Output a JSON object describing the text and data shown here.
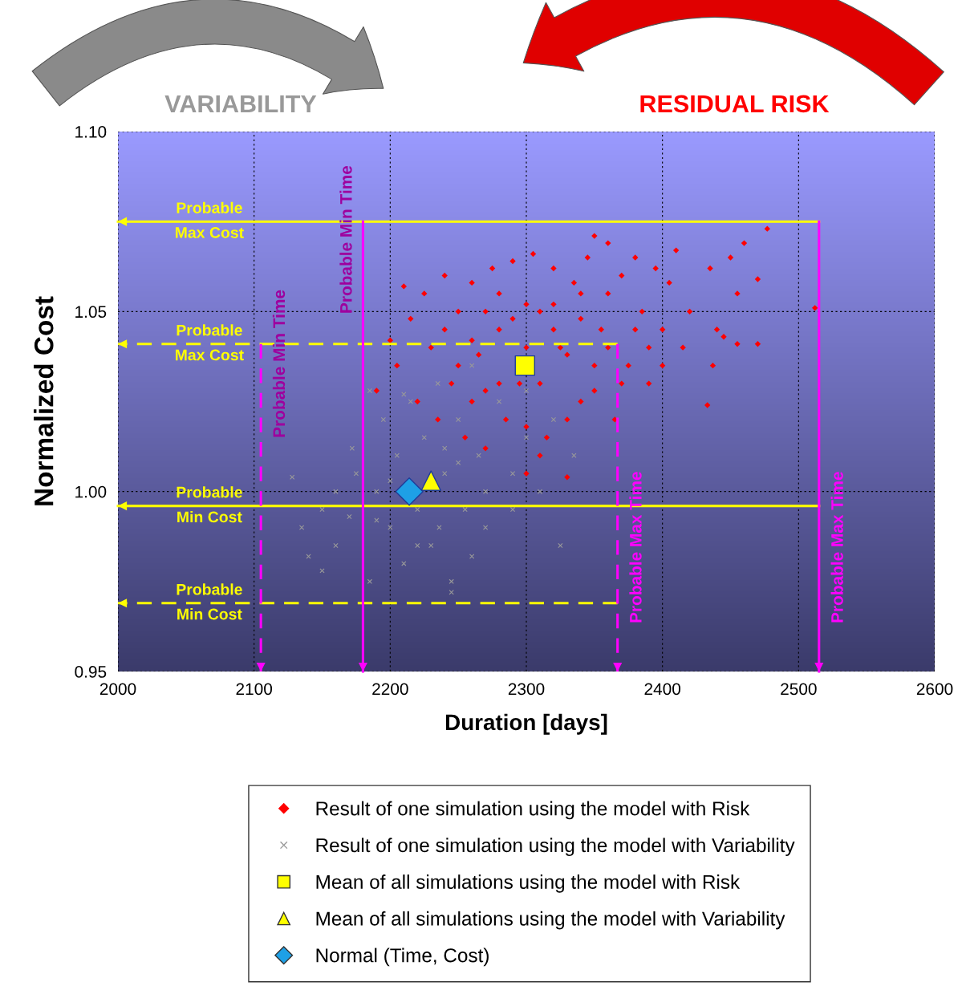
{
  "chart_data": {
    "type": "scatter",
    "xlabel": "Duration [days]",
    "ylabel": "Normalized Cost",
    "xlim": [
      2000,
      2600
    ],
    "xticks": [
      2000,
      2100,
      2200,
      2300,
      2400,
      2500,
      2600
    ],
    "ylim": [
      0.95,
      1.1
    ],
    "yticks": [
      {
        "value": 0.95,
        "label": "0.95"
      },
      {
        "value": 1.0,
        "label": "1.00"
      },
      {
        "value": 1.05,
        "label": "1.05"
      },
      {
        "value": 1.1,
        "label": "1.10"
      }
    ],
    "grid": true,
    "legend": "bottom",
    "annotations": [
      "VARIABILITY",
      "RESIDUAL RISK",
      "Probable\nMax Cost",
      "Probable\nMax Cost",
      "Probable\nMin Cost",
      "Probable\nMin Cost",
      "Probable Min Time",
      "Probable Min Time",
      "Probable Max Time",
      "Probable Max Time"
    ],
    "series": [
      {
        "name": "Result of one simulation using the model with Risk",
        "marker": "diamond",
        "color": "#ff0000",
        "x": [
          2190,
          2200,
          2210,
          2205,
          2215,
          2220,
          2225,
          2230,
          2235,
          2240,
          2245,
          2250,
          2255,
          2260,
          2265,
          2270,
          2275,
          2280,
          2285,
          2290,
          2295,
          2300,
          2305,
          2310,
          2315,
          2320,
          2325,
          2330,
          2335,
          2340,
          2345,
          2350,
          2355,
          2360,
          2365,
          2370,
          2375,
          2380,
          2385,
          2390,
          2395,
          2400,
          2405,
          2410,
          2415,
          2420,
          2240,
          2250,
          2260,
          2270,
          2280,
          2290,
          2300,
          2310,
          2320,
          2330,
          2340,
          2350,
          2360,
          2370,
          2380,
          2390,
          2400,
          2260,
          2280,
          2300,
          2320,
          2340,
          2360,
          2300,
          2330,
          2270,
          2310,
          2350,
          2435,
          2450,
          2460,
          2477,
          2470,
          2455,
          2440,
          2445,
          2455,
          2470,
          2437,
          2433,
          2512
        ],
        "values": [
          1.028,
          1.042,
          1.057,
          1.035,
          1.048,
          1.025,
          1.055,
          1.04,
          1.02,
          1.06,
          1.03,
          1.05,
          1.015,
          1.058,
          1.038,
          1.012,
          1.062,
          1.045,
          1.02,
          1.064,
          1.03,
          1.005,
          1.066,
          1.05,
          1.015,
          1.062,
          1.04,
          1.004,
          1.058,
          1.025,
          1.065,
          1.071,
          1.045,
          1.069,
          1.02,
          1.06,
          1.035,
          1.065,
          1.05,
          1.03,
          1.062,
          1.045,
          1.058,
          1.067,
          1.04,
          1.05,
          1.045,
          1.035,
          1.025,
          1.05,
          1.03,
          1.048,
          1.04,
          1.03,
          1.052,
          1.038,
          1.048,
          1.035,
          1.04,
          1.03,
          1.045,
          1.04,
          1.035,
          1.042,
          1.055,
          1.052,
          1.045,
          1.055,
          1.055,
          1.018,
          1.02,
          1.028,
          1.01,
          1.028,
          1.062,
          1.065,
          1.069,
          1.073,
          1.059,
          1.055,
          1.045,
          1.043,
          1.041,
          1.041,
          1.035,
          1.024,
          1.051
        ]
      },
      {
        "name": "Result of one simulation using the model with Variability",
        "marker": "cross",
        "color": "#999999",
        "x": [
          2128,
          2135,
          2140,
          2150,
          2160,
          2170,
          2175,
          2172,
          2185,
          2190,
          2195,
          2200,
          2205,
          2210,
          2215,
          2220,
          2225,
          2230,
          2235,
          2240,
          2245,
          2250,
          2255,
          2260,
          2265,
          2270,
          2280,
          2290,
          2300,
          2310,
          2320,
          2325,
          2335,
          2245,
          2210,
          2185,
          2160,
          2150,
          2200,
          2236,
          2250,
          2270,
          2290,
          2300,
          2260,
          2220,
          2190,
          2240
        ],
        "values": [
          1.004,
          0.99,
          0.982,
          0.978,
          0.985,
          0.993,
          1.005,
          1.012,
          0.975,
          1.0,
          1.02,
          0.99,
          1.01,
          0.98,
          1.025,
          0.995,
          1.015,
          0.985,
          1.03,
          1.005,
          0.975,
          1.02,
          0.995,
          1.035,
          1.01,
          0.99,
          1.025,
          1.005,
          1.015,
          1.0,
          1.02,
          0.985,
          1.01,
          0.972,
          1.027,
          1.028,
          1.0,
          0.995,
          1.003,
          0.99,
          1.008,
          1.0,
          0.995,
          1.028,
          0.982,
          0.985,
          0.992,
          1.012
        ]
      },
      {
        "name": "Mean of all simulations using the model with Risk",
        "marker": "square",
        "color": "#ffff00",
        "x": [
          2299
        ],
        "values": [
          1.035
        ]
      },
      {
        "name": "Mean of all simulations using the model with Variability",
        "marker": "triangle",
        "color": "#ffff00",
        "x": [
          2230
        ],
        "values": [
          1.003
        ]
      },
      {
        "name": "Normal (Time, Cost)",
        "marker": "diamond",
        "color": "#1ea0e6",
        "x": [
          2214
        ],
        "values": [
          1.0
        ]
      },
      {
        "type": "line",
        "color": "#ffff00",
        "line_style": "solid",
        "x": [
          2515,
          2000
        ],
        "values": [
          1.075,
          1.075
        ]
      },
      {
        "type": "line",
        "color": "#ffff00",
        "line_style": "dashed",
        "x": [
          2367,
          2000
        ],
        "values": [
          1.041,
          1.041
        ]
      },
      {
        "type": "line",
        "color": "#ffff00",
        "line_style": "solid",
        "x": [
          2515,
          2000
        ],
        "values": [
          0.996,
          0.996
        ]
      },
      {
        "type": "line",
        "color": "#ffff00",
        "line_style": "dashed",
        "x": [
          2367,
          2000
        ],
        "values": [
          0.969,
          0.969
        ]
      },
      {
        "type": "line",
        "color": "#ff00ff",
        "line_style": "solid",
        "x": [
          2180,
          2180
        ],
        "values": [
          1.075,
          0.95
        ]
      },
      {
        "type": "line",
        "color": "#ff00ff",
        "line_style": "dashed",
        "x": [
          2105,
          2105
        ],
        "values": [
          1.041,
          0.95
        ]
      },
      {
        "type": "line",
        "color": "#ff00ff",
        "line_style": "dashed",
        "x": [
          2367,
          2367
        ],
        "values": [
          1.041,
          0.95
        ]
      },
      {
        "type": "line",
        "color": "#ff00ff",
        "line_style": "solid",
        "x": [
          2515,
          2515
        ],
        "values": [
          1.075,
          0.95
        ]
      }
    ]
  }
}
